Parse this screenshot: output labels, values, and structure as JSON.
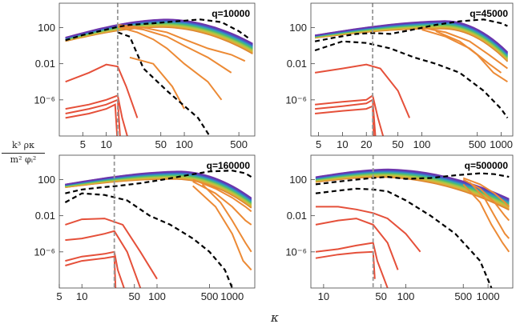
{
  "y_axis_label": {
    "numerator": "k³ ρκ",
    "denominator": "m² φᵢ²"
  },
  "x_axis_label": "κ",
  "chart_data": [
    {
      "type": "line",
      "annotation": "q=10000",
      "x_scale": "log",
      "y_scale": "log",
      "xlim": [
        2.5,
        800
      ],
      "ylim": [
        1e-10,
        50000.0
      ],
      "x_ticks": [
        5,
        10,
        50,
        100,
        500
      ],
      "x_tick_labels": [
        "5",
        "10",
        "50",
        "100",
        "500"
      ],
      "y_ticks": [
        100,
        0.01,
        1e-06
      ],
      "y_tick_labels": [
        "100",
        "0.01",
        "10⁻⁶"
      ],
      "vline_x": 14,
      "band": {
        "x_start": 3,
        "x_end": 750,
        "x_peak": 60,
        "y_start": 5,
        "y_peak": 300,
        "y_end": 1
      },
      "dashed_top": [
        [
          3,
          4
        ],
        [
          5,
          15
        ],
        [
          10,
          60
        ],
        [
          14,
          120
        ],
        [
          20,
          200
        ],
        [
          40,
          300
        ],
        [
          80,
          500
        ],
        [
          160,
          800
        ],
        [
          300,
          400
        ],
        [
          500,
          40
        ],
        [
          700,
          5
        ]
      ],
      "dashed_bottom": [
        [
          14,
          30
        ],
        [
          20,
          10
        ],
        [
          30,
          0.003
        ],
        [
          60,
          1e-05
        ],
        [
          150,
          1e-08
        ],
        [
          250,
          1e-11
        ]
      ],
      "red_curves": [
        [
          [
            3,
            0.0001
          ],
          [
            6,
            0.001
          ],
          [
            10,
            0.008
          ],
          [
            14,
            0.005
          ],
          [
            18,
            3e-05
          ],
          [
            25,
            1e-08
          ]
        ],
        [
          [
            3,
            1e-07
          ],
          [
            6,
            3e-07
          ],
          [
            10,
            1e-06
          ],
          [
            14,
            3e-06
          ],
          [
            16,
            1e-08
          ],
          [
            20,
            1e-11
          ]
        ],
        [
          [
            3,
            3e-08
          ],
          [
            6,
            1e-07
          ],
          [
            10,
            3e-07
          ],
          [
            14,
            1e-06
          ],
          [
            15,
            1e-10
          ]
        ],
        [
          [
            3,
            1e-08
          ],
          [
            6,
            3e-08
          ],
          [
            10,
            1e-07
          ],
          [
            13,
            3e-07
          ],
          [
            14,
            1e-11
          ]
        ]
      ],
      "orange_curves": [
        [
          [
            14,
            200
          ],
          [
            30,
            100
          ],
          [
            60,
            30
          ],
          [
            100,
            5
          ],
          [
            200,
            0.5
          ],
          [
            400,
            0.1
          ],
          [
            600,
            0.02
          ]
        ],
        [
          [
            14,
            150
          ],
          [
            30,
            60
          ],
          [
            60,
            10
          ],
          [
            100,
            1
          ],
          [
            200,
            0.05
          ],
          [
            400,
            0.001
          ]
        ],
        [
          [
            14,
            120
          ],
          [
            25,
            30
          ],
          [
            40,
            5
          ],
          [
            60,
            0.5
          ],
          [
            100,
            0.01
          ],
          [
            200,
            0.0001
          ],
          [
            300,
            1e-06
          ]
        ],
        [
          [
            20,
            0.05
          ],
          [
            40,
            0.01
          ],
          [
            70,
            3e-05
          ],
          [
            100,
            1e-07
          ]
        ]
      ]
    },
    {
      "type": "line",
      "annotation": "q=45000",
      "x_scale": "log",
      "y_scale": "log",
      "xlim": [
        4,
        1400
      ],
      "ylim": [
        1e-10,
        50000.0
      ],
      "x_ticks": [
        5,
        10,
        20,
        50,
        100,
        500,
        1000
      ],
      "x_tick_labels": [
        "5",
        "10",
        "20",
        "50",
        "100",
        "500",
        "1000"
      ],
      "y_ticks": [
        100,
        0.01,
        1e-06
      ],
      "y_tick_labels": [
        "100",
        "0.01",
        "10⁻⁶"
      ],
      "vline_x": 24,
      "band": {
        "x_start": 4.5,
        "x_end": 1200,
        "x_peak": 200,
        "y_start": 10,
        "y_peak": 200,
        "y_end": 0.1
      },
      "dashed_top": [
        [
          4.5,
          3
        ],
        [
          8,
          8
        ],
        [
          15,
          20
        ],
        [
          24,
          25
        ],
        [
          40,
          20
        ],
        [
          70,
          50
        ],
        [
          150,
          200
        ],
        [
          300,
          500
        ],
        [
          600,
          800
        ],
        [
          1000,
          300
        ],
        [
          1200,
          150
        ]
      ],
      "dashed_bottom": [
        [
          4.5,
          0.3
        ],
        [
          10,
          3
        ],
        [
          20,
          2
        ],
        [
          40,
          0.5
        ],
        [
          80,
          0.05
        ],
        [
          150,
          0.01
        ],
        [
          300,
          0.001
        ],
        [
          600,
          1e-05
        ],
        [
          1000,
          1e-07
        ],
        [
          1200,
          1e-08
        ]
      ],
      "red_curves": [
        [
          [
            4.5,
            0.001
          ],
          [
            10,
            0.003
          ],
          [
            20,
            0.008
          ],
          [
            30,
            0.003
          ],
          [
            50,
            1e-05
          ],
          [
            70,
            1e-08
          ]
        ],
        [
          [
            4.5,
            3e-07
          ],
          [
            10,
            6e-07
          ],
          [
            20,
            1e-06
          ],
          [
            24,
            3e-06
          ],
          [
            28,
            1e-08
          ],
          [
            35,
            1e-11
          ]
        ],
        [
          [
            4.5,
            1e-07
          ],
          [
            10,
            2e-07
          ],
          [
            20,
            4e-07
          ],
          [
            24,
            1e-06
          ],
          [
            26,
            1e-10
          ]
        ],
        [
          [
            4.5,
            3e-08
          ],
          [
            10,
            6e-08
          ],
          [
            20,
            1e-07
          ],
          [
            24,
            2e-07
          ],
          [
            25,
            1e-11
          ]
        ]
      ],
      "orange_curves": [
        [
          [
            100,
            100
          ],
          [
            200,
            30
          ],
          [
            400,
            3
          ],
          [
            700,
            0.1
          ],
          [
            1000,
            0.01
          ],
          [
            1200,
            0.003
          ]
        ],
        [
          [
            100,
            60
          ],
          [
            200,
            10
          ],
          [
            400,
            0.5
          ],
          [
            700,
            0.01
          ],
          [
            1000,
            0.001
          ]
        ],
        [
          [
            150,
            40
          ],
          [
            300,
            3
          ],
          [
            500,
            0.1
          ],
          [
            800,
            0.001
          ],
          [
            1200,
            0.0001
          ]
        ]
      ]
    },
    {
      "type": "line",
      "annotation": "q=160000",
      "x_scale": "log",
      "y_scale": "log",
      "xlim": [
        5,
        2000
      ],
      "ylim": [
        1e-10,
        50000.0
      ],
      "x_ticks": [
        5,
        10,
        50,
        100,
        500,
        1000
      ],
      "x_tick_labels": [
        "5",
        "10",
        "50",
        "100",
        "500",
        "1000"
      ],
      "y_ticks": [
        100,
        0.01,
        1e-06
      ],
      "y_tick_labels": [
        "100",
        "0.01",
        "10⁻⁶"
      ],
      "vline_x": 27,
      "band": {
        "x_start": 6,
        "x_end": 1800,
        "x_peak": 200,
        "y_start": 20,
        "y_peak": 300,
        "y_end": 0.5
      },
      "dashed_top": [
        [
          6,
          3
        ],
        [
          10,
          8
        ],
        [
          20,
          15
        ],
        [
          30,
          20
        ],
        [
          60,
          40
        ],
        [
          120,
          100
        ],
        [
          250,
          300
        ],
        [
          500,
          800
        ],
        [
          1000,
          1000
        ],
        [
          1500,
          500
        ],
        [
          1800,
          200
        ]
      ],
      "dashed_bottom": [
        [
          6,
          0.3
        ],
        [
          10,
          3
        ],
        [
          20,
          2
        ],
        [
          40,
          0.5
        ],
        [
          80,
          0.01
        ],
        [
          150,
          0.001
        ],
        [
          300,
          3e-05
        ],
        [
          500,
          1e-06
        ],
        [
          800,
          1e-08
        ],
        [
          1000,
          1e-10
        ]
      ],
      "red_curves": [
        [
          [
            6,
            0.001
          ],
          [
            10,
            0.004
          ],
          [
            20,
            0.005
          ],
          [
            35,
            0.001
          ],
          [
            60,
            1e-06
          ],
          [
            100,
            1e-09
          ]
        ],
        [
          [
            6,
            2e-05
          ],
          [
            10,
            3e-05
          ],
          [
            20,
            0.0001
          ],
          [
            27,
            0.0002
          ],
          [
            40,
            1e-06
          ],
          [
            60,
            1e-10
          ]
        ],
        [
          [
            6,
            1e-07
          ],
          [
            10,
            3e-07
          ],
          [
            20,
            6e-07
          ],
          [
            27,
            1e-06
          ],
          [
            30,
            1e-08
          ],
          [
            40,
            1e-11
          ]
        ],
        [
          [
            6,
            3e-08
          ],
          [
            10,
            1e-07
          ],
          [
            20,
            2e-07
          ],
          [
            27,
            3e-07
          ],
          [
            28,
            1e-10
          ]
        ]
      ],
      "orange_curves": [
        [
          [
            300,
            100
          ],
          [
            600,
            10
          ],
          [
            1000,
            1
          ],
          [
            1500,
            0.1
          ],
          [
            1800,
            0.03
          ]
        ],
        [
          [
            300,
            60
          ],
          [
            600,
            3
          ],
          [
            1000,
            0.1
          ],
          [
            1500,
            0.003
          ],
          [
            1800,
            0.001
          ]
        ],
        [
          [
            400,
            30
          ],
          [
            700,
            0.3
          ],
          [
            1000,
            0.003
          ],
          [
            1500,
            1e-05
          ],
          [
            1800,
            1e-06
          ]
        ],
        [
          [
            300,
            20
          ],
          [
            600,
            0.1
          ],
          [
            1000,
            0.0001
          ],
          [
            1400,
            1e-07
          ],
          [
            1800,
            1e-08
          ]
        ]
      ]
    },
    {
      "type": "line",
      "annotation": "q=500000",
      "x_scale": "log",
      "y_scale": "log",
      "xlim": [
        7,
        2000
      ],
      "ylim": [
        1e-10,
        50000.0
      ],
      "x_ticks": [
        10,
        50,
        100,
        500,
        1000
      ],
      "x_tick_labels": [
        "10",
        "50",
        "100",
        "500",
        "1000"
      ],
      "y_ticks": [
        100,
        0.01,
        1e-06
      ],
      "y_tick_labels": [
        "100",
        "0.01",
        "10⁻⁶"
      ],
      "vline_x": 40,
      "band": {
        "x_start": 8,
        "x_end": 1800,
        "x_peak": 60,
        "y_start": 100,
        "y_peak": 500,
        "y_end": 0.5
      },
      "dashed_top": [
        [
          8,
          30
        ],
        [
          15,
          60
        ],
        [
          25,
          100
        ],
        [
          40,
          150
        ],
        [
          60,
          200
        ],
        [
          100,
          120
        ],
        [
          200,
          150
        ],
        [
          400,
          300
        ],
        [
          800,
          500
        ],
        [
          1200,
          400
        ],
        [
          1800,
          200
        ]
      ],
      "dashed_bottom": [
        [
          8,
          3
        ],
        [
          15,
          6
        ],
        [
          25,
          10
        ],
        [
          40,
          8
        ],
        [
          60,
          5
        ],
        [
          100,
          0.5
        ],
        [
          200,
          0.01
        ],
        [
          400,
          0.0001
        ],
        [
          800,
          1e-07
        ],
        [
          1100,
          1e-10
        ]
      ],
      "red_curves": [
        [
          [
            8,
            0.1
          ],
          [
            15,
            0.1
          ],
          [
            25,
            0.05
          ],
          [
            40,
            0.02
          ],
          [
            60,
            0.005
          ],
          [
            100,
            0.0001
          ],
          [
            150,
            1e-06
          ]
        ],
        [
          [
            8,
            0.001
          ],
          [
            15,
            0.003
          ],
          [
            25,
            0.005
          ],
          [
            40,
            0.001
          ],
          [
            60,
            1e-05
          ],
          [
            80,
            1e-08
          ]
        ],
        [
          [
            8,
            1e-06
          ],
          [
            15,
            2e-06
          ],
          [
            25,
            5e-06
          ],
          [
            40,
            1e-05
          ],
          [
            45,
            1e-07
          ],
          [
            60,
            1e-10
          ]
        ],
        [
          [
            8,
            2e-07
          ],
          [
            15,
            5e-07
          ],
          [
            25,
            8e-07
          ],
          [
            40,
            1e-06
          ],
          [
            42,
            1e-09
          ]
        ]
      ],
      "orange_curves": [
        [
          [
            500,
            150
          ],
          [
            800,
            30
          ],
          [
            1200,
            3
          ],
          [
            1600,
            0.3
          ],
          [
            1800,
            0.1
          ]
        ],
        [
          [
            500,
            100
          ],
          [
            800,
            10
          ],
          [
            1200,
            0.3
          ],
          [
            1600,
            0.01
          ],
          [
            1800,
            0.003
          ]
        ],
        [
          [
            600,
            50
          ],
          [
            900,
            1
          ],
          [
            1200,
            0.01
          ],
          [
            1600,
            0.0001
          ],
          [
            1800,
            3e-05
          ]
        ],
        [
          [
            500,
            30
          ],
          [
            800,
            0.3
          ],
          [
            1100,
            0.001
          ],
          [
            1500,
            1e-05
          ],
          [
            1800,
            1e-06
          ]
        ]
      ]
    }
  ]
}
